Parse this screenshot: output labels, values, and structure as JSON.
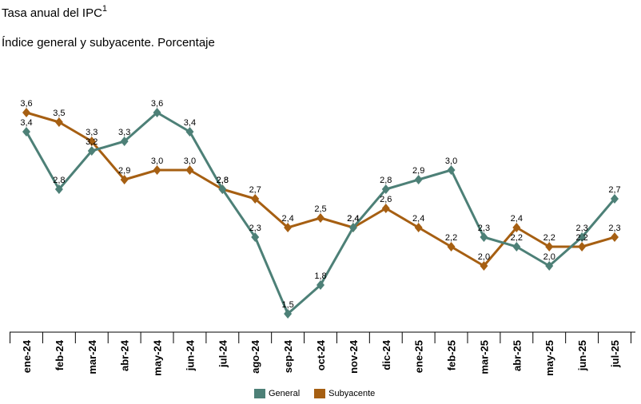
{
  "title": "Tasa anual del IPC",
  "title_sup": "1",
  "subtitle": "Índice general y subyacente. Porcentaje",
  "colors": {
    "general": "#4d8077",
    "subyacente": "#a65f12"
  },
  "chart_data": {
    "type": "line",
    "categories": [
      "ene-24",
      "feb-24",
      "mar-24",
      "abr-24",
      "may-24",
      "jun-24",
      "jul-24",
      "ago-24",
      "sep-24",
      "oct-24",
      "nov-24",
      "dic-24",
      "ene-25",
      "feb-25",
      "mar-25",
      "abr-25",
      "may-25",
      "jun-25",
      "jul-25"
    ],
    "series": [
      {
        "name": "General",
        "values": [
          3.4,
          2.8,
          3.2,
          3.3,
          3.6,
          3.4,
          2.8,
          2.3,
          1.5,
          1.8,
          2.4,
          2.8,
          2.9,
          3.0,
          2.3,
          2.2,
          2.0,
          2.3,
          2.7
        ]
      },
      {
        "name": "Subyacente",
        "values": [
          3.6,
          3.5,
          3.3,
          2.9,
          3.0,
          3.0,
          2.8,
          2.7,
          2.4,
          2.5,
          2.4,
          2.6,
          2.4,
          2.2,
          2.0,
          2.4,
          2.2,
          2.2,
          2.3
        ]
      }
    ],
    "data_labels": {
      "General": [
        "3,4",
        "2,8",
        "3,2",
        "3,3",
        "3,6",
        "3,4",
        "2,8",
        "2,3",
        "1,5",
        "1,8",
        "2,4",
        "2,8",
        "2,9",
        "3,0",
        "2,3",
        "2,2",
        "2,0",
        "2,3",
        "2,7"
      ],
      "Subyacente": [
        "3,6",
        "3,5",
        "3,3",
        "2,9",
        "3,0",
        "3,0",
        "2,8",
        "2,7",
        "2,4",
        "2,5",
        "2,4",
        "2,6",
        "2,4",
        "2,2",
        "2,0",
        "2,4",
        "2,2",
        "2,2",
        "2,3"
      ]
    },
    "ylim": [
      1.3,
      3.8
    ],
    "grid": false,
    "legend_position": "bottom"
  },
  "legend": [
    {
      "key": "general",
      "label": "General"
    },
    {
      "key": "subyacente",
      "label": "Subyacente"
    }
  ]
}
